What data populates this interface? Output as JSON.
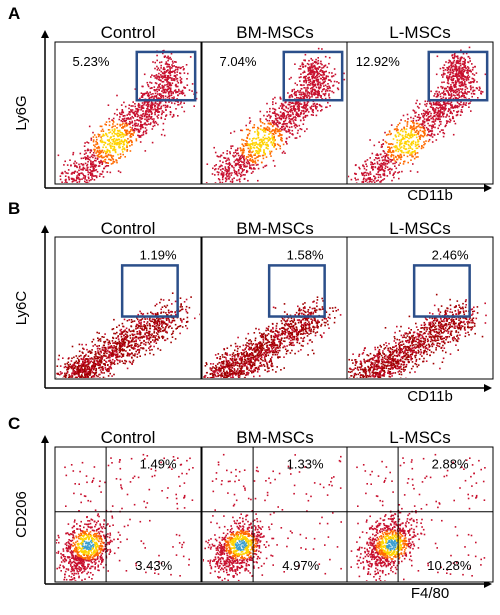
{
  "figure": {
    "panels": [
      {
        "letter": "A",
        "ylabel": "Ly6G",
        "xlabel": "CD11b",
        "gate": "box",
        "groups": [
          {
            "title": "Control",
            "pct": [
              "5.23%"
            ]
          },
          {
            "title": "BM-MSCs",
            "pct": [
              "7.04%"
            ]
          },
          {
            "title": "L-MSCs",
            "pct": [
              "12.92%"
            ]
          }
        ]
      },
      {
        "letter": "B",
        "ylabel": "Ly6C",
        "xlabel": "CD11b",
        "gate": "box",
        "groups": [
          {
            "title": "Control",
            "pct": [
              "1.19%"
            ]
          },
          {
            "title": "BM-MSCs",
            "pct": [
              "1.58%"
            ]
          },
          {
            "title": "L-MSCs",
            "pct": [
              "2.46%"
            ]
          }
        ]
      },
      {
        "letter": "C",
        "ylabel": "CD206",
        "xlabel": "F4/80",
        "gate": "quadrant",
        "groups": [
          {
            "title": "Control",
            "pct": [
              "1.49%",
              "3.43%"
            ]
          },
          {
            "title": "BM-MSCs",
            "pct": [
              "1.33%",
              "4.97%"
            ]
          },
          {
            "title": "L-MSCs",
            "pct": [
              "2.88%",
              "10.28%"
            ]
          }
        ]
      }
    ],
    "colors": {
      "axis": "#000000",
      "gate_box": "#2b4f8a",
      "quadrant_lines": "#000000",
      "density_low": "#c8102e",
      "density_mid": "#ff6a00",
      "density_high": "#ffd200",
      "density_peak": "#3a9fd0"
    }
  }
}
